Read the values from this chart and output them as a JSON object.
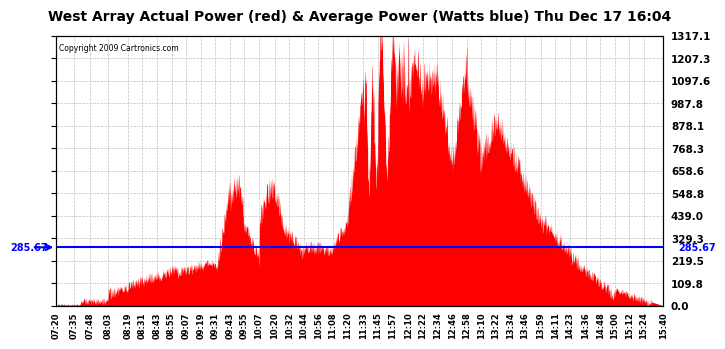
{
  "title": "West Array Actual Power (red) & Average Power (Watts blue) Thu Dec 17 16:04",
  "copyright": "Copyright 2009 Cartronics.com",
  "average_power": 285.67,
  "y_max": 1317.1,
  "y_min": 0.0,
  "y_ticks": [
    0.0,
    109.8,
    219.5,
    329.3,
    439.0,
    548.8,
    658.6,
    768.3,
    878.1,
    987.8,
    1097.6,
    1207.3,
    1317.1
  ],
  "background_color": "#ffffff",
  "fill_color": "#ff0000",
  "line_color": "#ff0000",
  "avg_line_color": "#0000ff",
  "grid_color": "#c0c0c0",
  "title_fontsize": 10,
  "x_labels": [
    "07:20",
    "07:35",
    "07:48",
    "08:03",
    "08:19",
    "08:31",
    "08:43",
    "08:55",
    "09:07",
    "09:19",
    "09:31",
    "09:43",
    "09:55",
    "10:07",
    "10:20",
    "10:32",
    "10:44",
    "10:56",
    "11:08",
    "11:20",
    "11:33",
    "11:45",
    "11:57",
    "12:10",
    "12:22",
    "12:34",
    "12:46",
    "12:58",
    "13:10",
    "13:22",
    "13:34",
    "13:46",
    "13:59",
    "14:11",
    "14:23",
    "14:36",
    "14:48",
    "15:00",
    "15:12",
    "15:24",
    "15:40"
  ]
}
